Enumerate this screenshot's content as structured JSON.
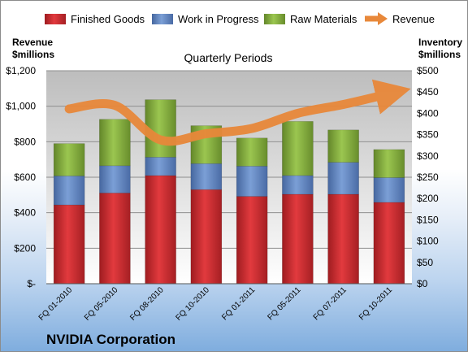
{
  "company": "NVIDIA Corporation",
  "colors": {
    "finished_goods": "#c0282d",
    "work_in_progress": "#5b80be",
    "raw_materials": "#7ba134",
    "revenue": "#e8883a",
    "plot_bg": "#bfbfbf"
  },
  "chart_data": {
    "type": "bar",
    "stacked": true,
    "title": "Quarterly Periods",
    "left_axis_label": [
      "Revenue",
      "$millions"
    ],
    "right_axis_label": [
      "Inventory",
      "$millions"
    ],
    "categories": [
      "FQ 01-2010",
      "FQ 05-2010",
      "FQ 08-2010",
      "FQ 10-2010",
      "FQ 01-2011",
      "FQ 05-2011",
      "FQ 07-2011",
      "FQ 10-2011"
    ],
    "series": [
      {
        "name": "Finished Goods",
        "axis": "right",
        "values": [
          185,
          213,
          254,
          221,
          205,
          210,
          210,
          191
        ]
      },
      {
        "name": "Work in Progress",
        "axis": "right",
        "values": [
          68,
          64,
          43,
          61,
          71,
          44,
          75,
          58
        ]
      },
      {
        "name": "Raw Materials",
        "axis": "right",
        "values": [
          76,
          109,
          135,
          89,
          66,
          127,
          76,
          66
        ]
      },
      {
        "name": "Revenue",
        "axis": "left",
        "type": "line",
        "values": [
          985,
          1005,
          810,
          845,
          875,
          960,
          1010,
          1070
        ]
      }
    ],
    "left_axis": {
      "min": 0,
      "max": 1200,
      "ticks": [
        "$-",
        "$200",
        "$400",
        "$600",
        "$800",
        "$1,000",
        "$1,200"
      ]
    },
    "right_axis": {
      "min": 0,
      "max": 500,
      "ticks": [
        "$0",
        "$50",
        "$100",
        "$150",
        "$200",
        "$250",
        "$300",
        "$350",
        "$400",
        "$450",
        "$500"
      ]
    },
    "legend_position": "top"
  }
}
